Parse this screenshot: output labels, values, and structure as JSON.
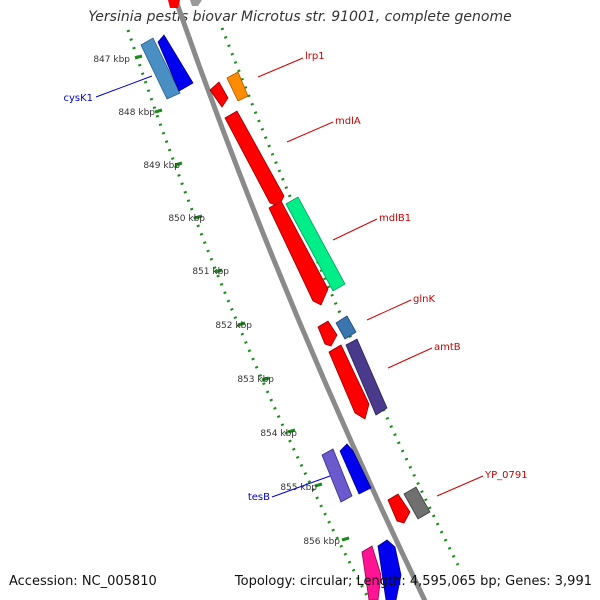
{
  "title": "Yersinia pestis biovar Microtus str. 91001, complete genome",
  "footer": {
    "accession": "Accession: NC_005810",
    "summary": "Topology: circular; Length: 4,595,065 bp; Genes: 3,991"
  },
  "colors": {
    "backbone": "#8a8a8a",
    "ticks": "#1d8a1d",
    "forward_label": "#cc0000",
    "reverse_label": "#0000cc"
  },
  "ticks": [
    "847 kbp",
    "848 kbp",
    "849 kbp",
    "850 kbp",
    "851 kbp",
    "852 kbp",
    "853 kbp",
    "854 kbp",
    "855 kbp",
    "856 kbp"
  ],
  "genes": [
    {
      "name": "cysK1",
      "strand": "reverse",
      "color": "#0000ee",
      "label_color": "#0000cc"
    },
    {
      "name": "lrp1",
      "strand": "forward",
      "color": "#ff8c00",
      "label_color": "#cc0000"
    },
    {
      "name": "mdlA",
      "strand": "forward",
      "color": "#ff0000",
      "label_color": "#cc0000"
    },
    {
      "name": "mdlB1",
      "strand": "forward",
      "color": "#00ee88",
      "label_color": "#cc0000"
    },
    {
      "name": "glnK",
      "strand": "forward",
      "color": "#3a75b0",
      "label_color": "#cc0000"
    },
    {
      "name": "amtB",
      "strand": "forward",
      "color": "#4a3a8c",
      "label_color": "#cc0000"
    },
    {
      "name": "tesB",
      "strand": "reverse",
      "color": "#6a5acd",
      "label_color": "#0000cc"
    },
    {
      "name": "YP_0791",
      "strand": "forward",
      "color": "#707070",
      "label_color": "#cc0000"
    }
  ]
}
